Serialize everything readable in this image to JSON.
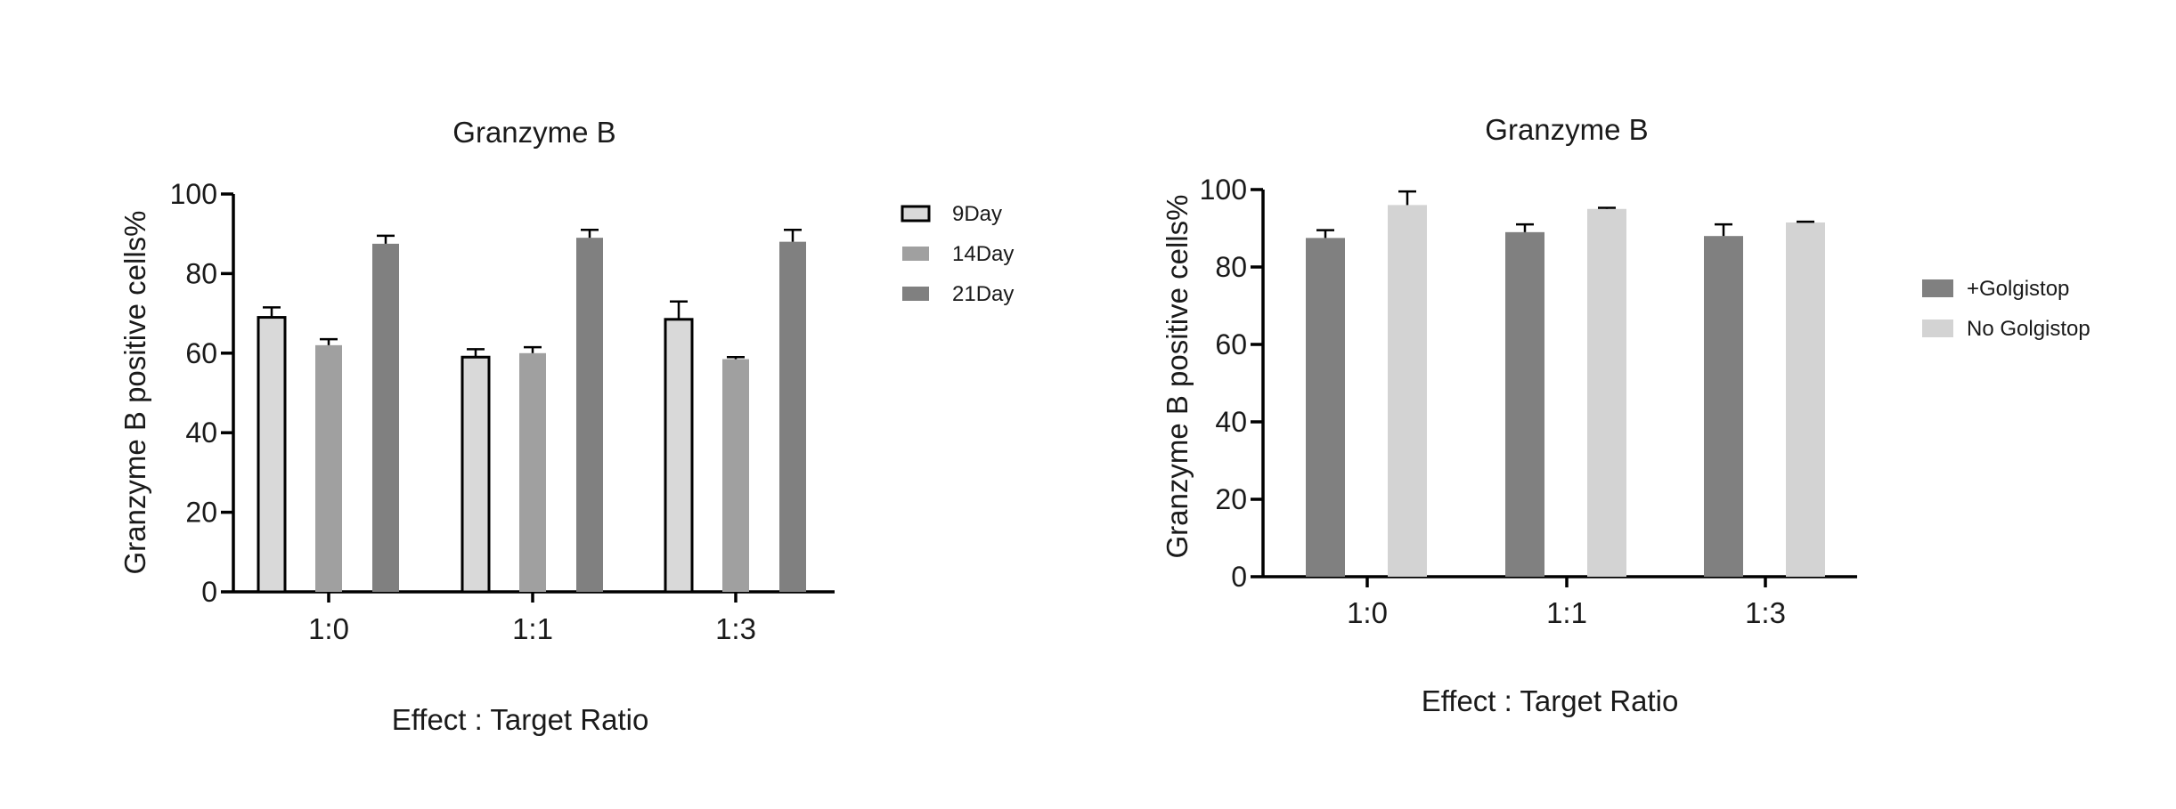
{
  "chart_data": [
    {
      "type": "bar",
      "title": "Granzyme B",
      "xlabel": "Effect : Target Ratio",
      "ylabel": "Granzyme B positive cells%",
      "categories": [
        "1:0",
        "1:1",
        "1:3"
      ],
      "ylim": [
        0,
        100
      ],
      "yticks": [
        "0",
        "20",
        "40",
        "60",
        "80",
        "100"
      ],
      "grid": false,
      "legend_position": "top-right",
      "series": [
        {
          "name": "9Day",
          "values": [
            69,
            59,
            68.5
          ],
          "errors": [
            2.5,
            2,
            4.5
          ],
          "color": "#d9d9d9",
          "outlined": true
        },
        {
          "name": "14Day",
          "values": [
            62,
            60,
            58.5
          ],
          "errors": [
            1.5,
            1.5,
            0.5
          ],
          "color": "#a0a0a0",
          "outlined": false
        },
        {
          "name": "21Day",
          "values": [
            87.5,
            89,
            88
          ],
          "errors": [
            2,
            2,
            3
          ],
          "color": "#808080",
          "outlined": false
        }
      ]
    },
    {
      "type": "bar",
      "title": "Granzyme B",
      "xlabel": "Effect : Target Ratio",
      "ylabel": "Granzyme B positive cells%",
      "categories": [
        "1:0",
        "1:1",
        "1:3"
      ],
      "ylim": [
        0,
        100
      ],
      "yticks": [
        "0",
        "20",
        "40",
        "60",
        "80",
        "100"
      ],
      "grid": false,
      "legend_position": "right",
      "series": [
        {
          "name": "+Golgistop",
          "values": [
            87.5,
            89,
            88
          ],
          "errors": [
            2,
            2,
            3
          ],
          "color": "#808080",
          "outlined": false
        },
        {
          "name": "No Golgistop",
          "values": [
            96,
            95,
            91.5
          ],
          "errors": [
            3.5,
            0.3,
            0.2
          ],
          "color": "#d3d3d3",
          "outlined": false
        }
      ]
    }
  ]
}
